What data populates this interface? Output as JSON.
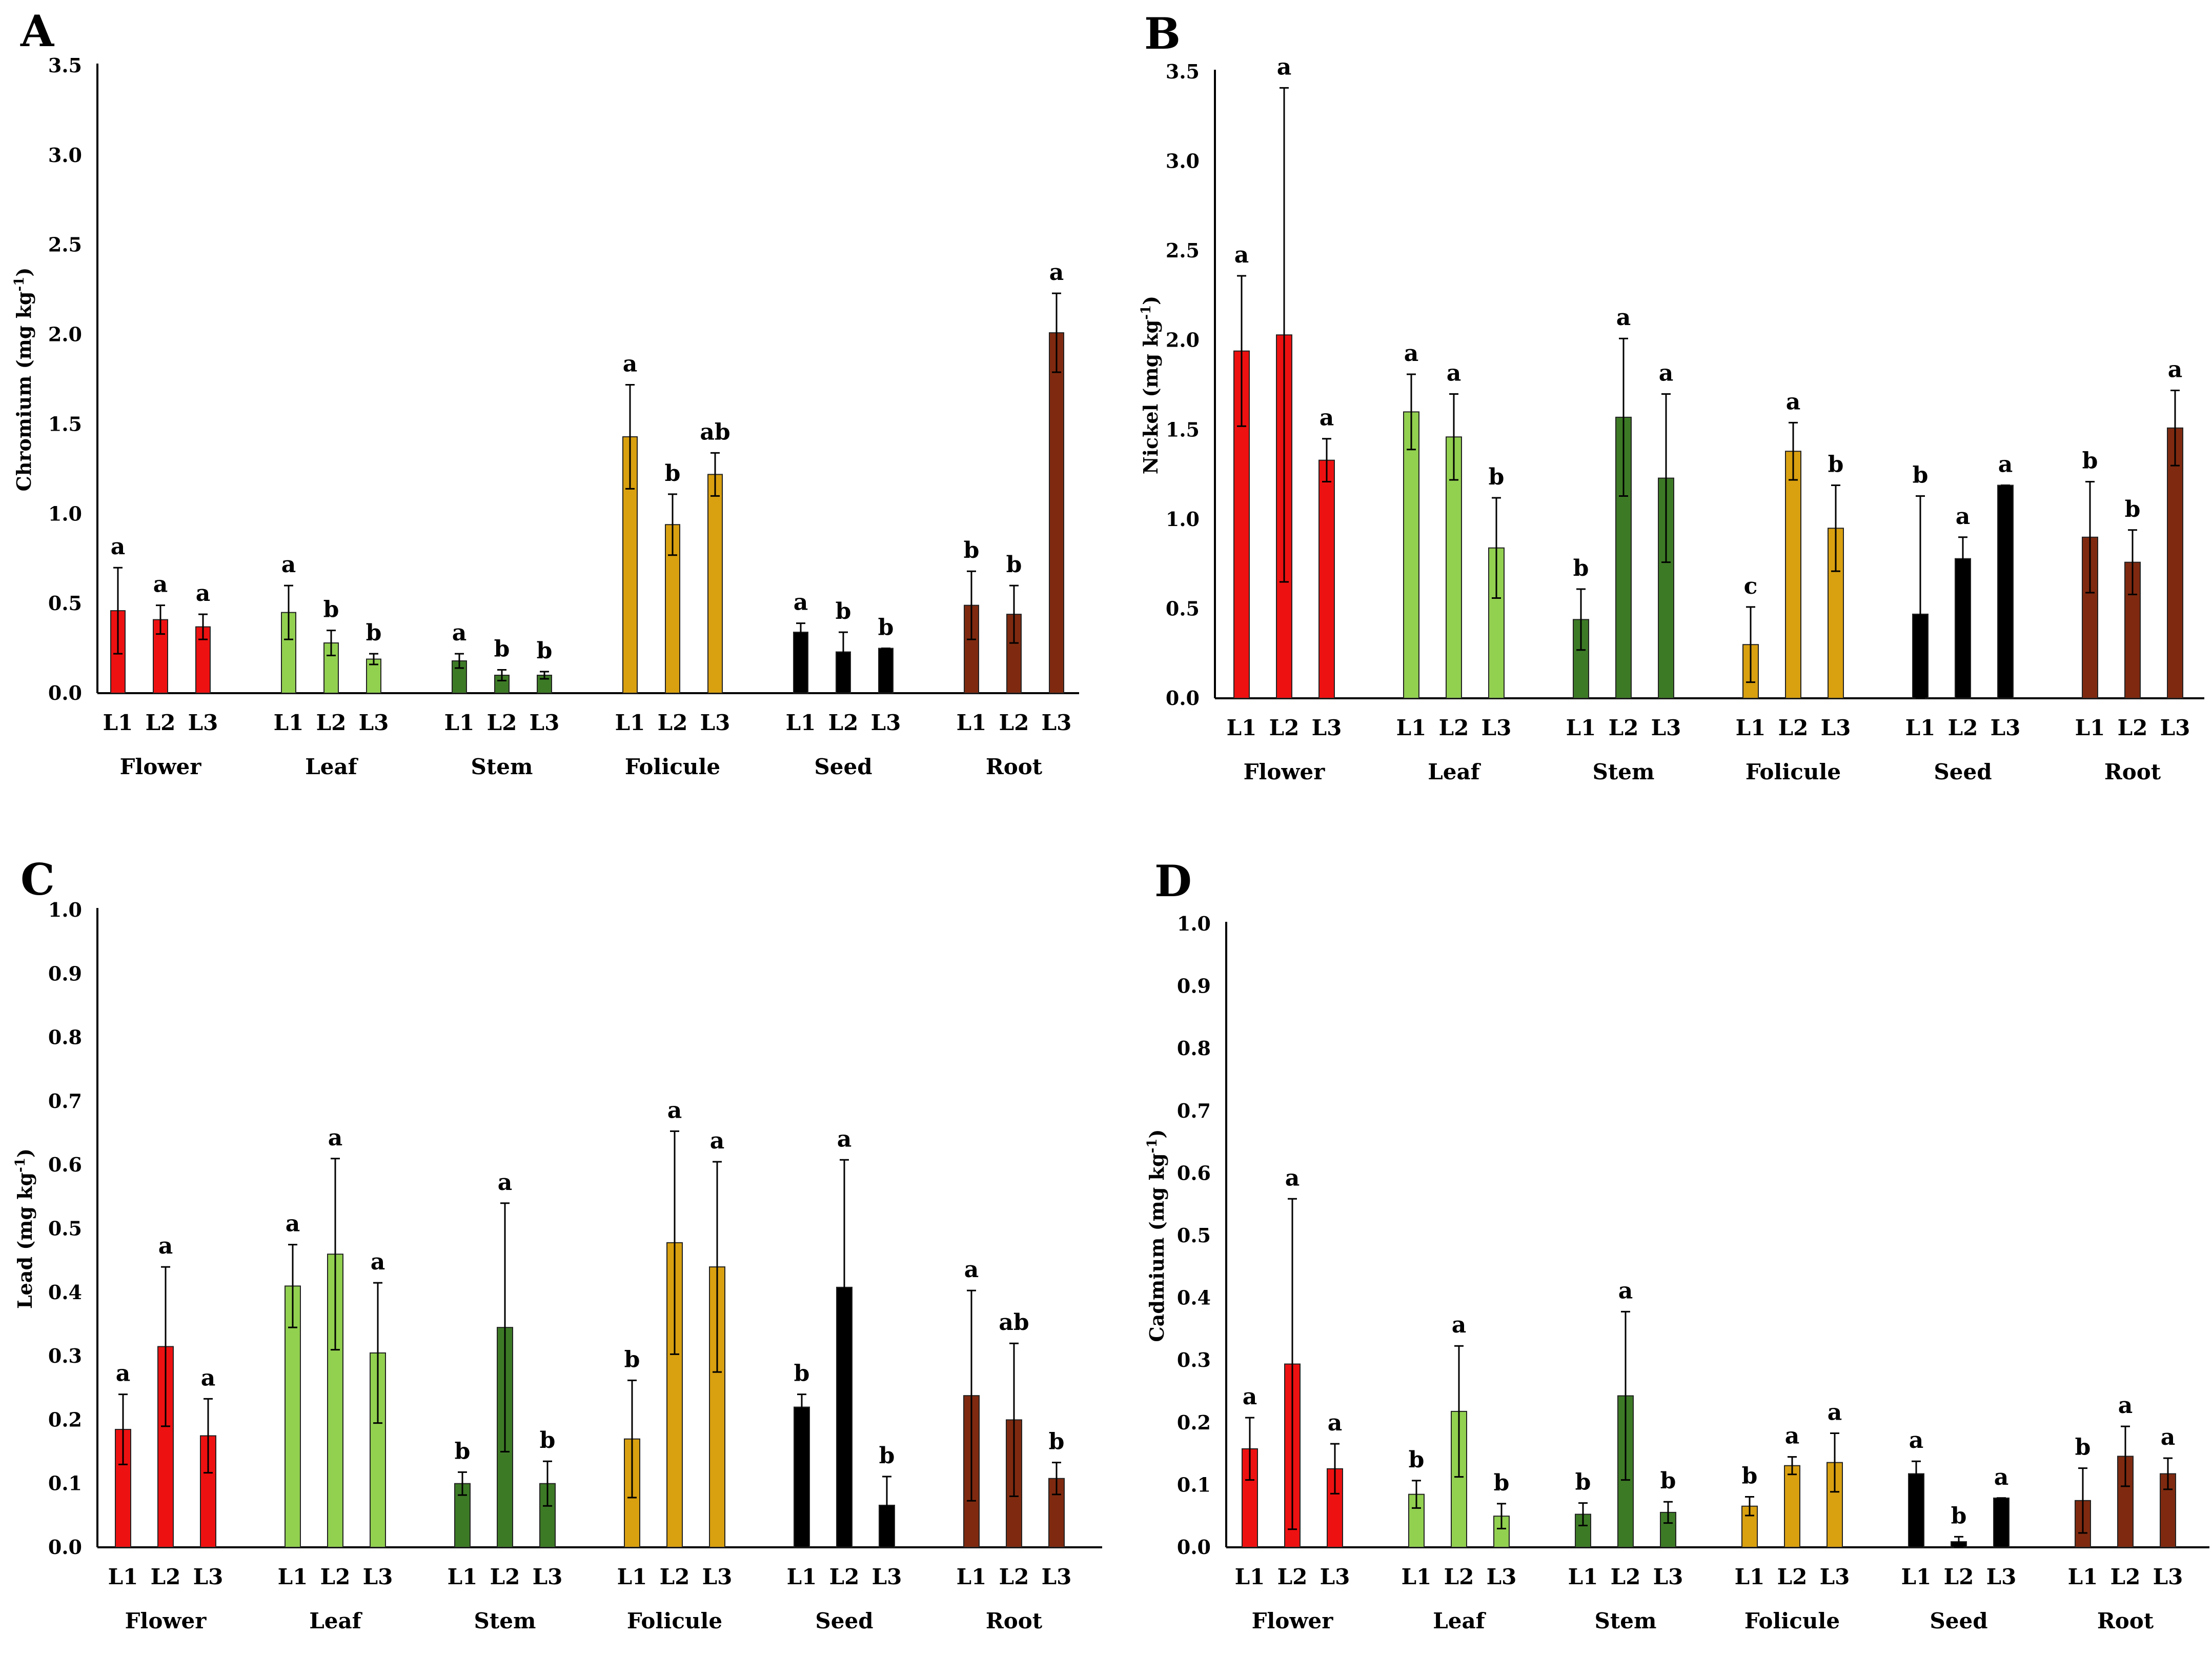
{
  "colors": {
    "Flower": "#ee1111",
    "Leaf": "#92d050",
    "Stem": "#3d7a26",
    "Folicule": "#d9a010",
    "Seed": "#000000",
    "Root": "#7f2a10"
  },
  "chart_data": [
    {
      "type": "bar",
      "panel": "A",
      "ylabel": "Chromium (mg kg",
      "ylabel_sup": "-1",
      "ylabel_close": ")",
      "ylim": [
        0,
        3.5
      ],
      "yticks": [
        "0.0",
        "0.5",
        "1.0",
        "1.5",
        "2.0",
        "2.5",
        "3.0",
        "3.5"
      ],
      "groups": [
        "Flower",
        "Leaf",
        "Stem",
        "Folicule",
        "Seed",
        "Root"
      ],
      "categories": [
        "L1",
        "L2",
        "L3"
      ],
      "series": [
        {
          "name": "Flower",
          "values": [
            0.46,
            0.41,
            0.37
          ],
          "errors": [
            0.24,
            0.08,
            0.07
          ],
          "letters": [
            "a",
            "a",
            "a"
          ]
        },
        {
          "name": "Leaf",
          "values": [
            0.45,
            0.28,
            0.19
          ],
          "errors": [
            0.15,
            0.07,
            0.03
          ],
          "letters": [
            "a",
            "b",
            "b"
          ]
        },
        {
          "name": "Stem",
          "values": [
            0.18,
            0.1,
            0.1
          ],
          "errors": [
            0.04,
            0.03,
            0.02
          ],
          "letters": [
            "a",
            "b",
            "b"
          ]
        },
        {
          "name": "Folicule",
          "values": [
            1.43,
            0.94,
            1.22
          ],
          "errors": [
            0.29,
            0.17,
            0.12
          ],
          "letters": [
            "a",
            "b",
            "ab"
          ]
        },
        {
          "name": "Seed",
          "values": [
            0.34,
            0.23,
            0.25
          ],
          "errors": [
            0.05,
            0.11,
            0.0
          ],
          "letters": [
            "a",
            "b",
            "b"
          ]
        },
        {
          "name": "Root",
          "values": [
            0.49,
            0.44,
            2.01
          ],
          "errors": [
            0.19,
            0.16,
            0.22
          ],
          "letters": [
            "b",
            "b",
            "a"
          ]
        }
      ]
    },
    {
      "type": "bar",
      "panel": "B",
      "ylabel": "Nickel (mg kg",
      "ylabel_sup": "-1",
      "ylabel_close": ")",
      "ylim": [
        0,
        3.5
      ],
      "yticks": [
        "0.0",
        "0.5",
        "1.0",
        "1.5",
        "2.0",
        "2.5",
        "3.0",
        "3.5"
      ],
      "groups": [
        "Flower",
        "Leaf",
        "Stem",
        "Folicule",
        "Seed",
        "Root"
      ],
      "categories": [
        "L1",
        "L2",
        "L3"
      ],
      "series": [
        {
          "name": "Flower",
          "values": [
            1.94,
            2.03,
            1.33
          ],
          "errors": [
            0.42,
            1.38,
            0.12
          ],
          "letters": [
            "a",
            "a",
            "a"
          ]
        },
        {
          "name": "Leaf",
          "values": [
            1.6,
            1.46,
            0.84
          ],
          "errors": [
            0.21,
            0.24,
            0.28
          ],
          "letters": [
            "a",
            "a",
            "b"
          ]
        },
        {
          "name": "Stem",
          "values": [
            0.44,
            1.57,
            1.23
          ],
          "errors": [
            0.17,
            0.44,
            0.47
          ],
          "letters": [
            "b",
            "a",
            "a"
          ]
        },
        {
          "name": "Folicule",
          "values": [
            0.3,
            1.38,
            0.95
          ],
          "errors": [
            0.21,
            0.16,
            0.24
          ],
          "letters": [
            "c",
            "a",
            "b"
          ]
        },
        {
          "name": "Seed",
          "values": [
            0.47,
            0.78,
            1.19
          ],
          "errors": [
            0.66,
            0.12,
            0.0
          ],
          "letters": [
            "b",
            "a",
            "a"
          ]
        },
        {
          "name": "Root",
          "values": [
            0.9,
            0.76,
            1.51
          ],
          "errors": [
            0.31,
            0.18,
            0.21
          ],
          "letters": [
            "b",
            "b",
            "a"
          ]
        }
      ]
    },
    {
      "type": "bar",
      "panel": "C",
      "ylabel": "Lead (mg kg",
      "ylabel_sup": "-1",
      "ylabel_close": ")",
      "ylim": [
        0,
        1.0
      ],
      "yticks": [
        "0.0",
        "0.1",
        "0.2",
        "0.3",
        "0.4",
        "0.5",
        "0.6",
        "0.7",
        "0.8",
        "0.9",
        "1.0"
      ],
      "groups": [
        "Flower",
        "Leaf",
        "Stem",
        "Folicule",
        "Seed",
        "Root"
      ],
      "categories": [
        "L1",
        "L2",
        "L3"
      ],
      "series": [
        {
          "name": "Flower",
          "values": [
            0.185,
            0.315,
            0.175
          ],
          "errors": [
            0.055,
            0.125,
            0.058
          ],
          "letters": [
            "a",
            "a",
            "a"
          ]
        },
        {
          "name": "Leaf",
          "values": [
            0.41,
            0.46,
            0.305
          ],
          "errors": [
            0.065,
            0.15,
            0.11
          ],
          "letters": [
            "a",
            "a",
            "a"
          ]
        },
        {
          "name": "Stem",
          "values": [
            0.1,
            0.345,
            0.1
          ],
          "errors": [
            0.018,
            0.195,
            0.035
          ],
          "letters": [
            "b",
            "a",
            "b"
          ]
        },
        {
          "name": "Folicule",
          "values": [
            0.17,
            0.478,
            0.44
          ],
          "errors": [
            0.092,
            0.175,
            0.165
          ],
          "letters": [
            "b",
            "a",
            "a"
          ]
        },
        {
          "name": "Seed",
          "values": [
            0.22,
            0.408,
            0.066
          ],
          "errors": [
            0.02,
            0.2,
            0.045
          ],
          "letters": [
            "b",
            "a",
            "b"
          ]
        },
        {
          "name": "Root",
          "values": [
            0.238,
            0.2,
            0.108
          ],
          "errors": [
            0.165,
            0.12,
            0.025
          ],
          "letters": [
            "a",
            "ab",
            "b"
          ]
        }
      ]
    },
    {
      "type": "bar",
      "panel": "D",
      "ylabel": "Cadmium (mg kg",
      "ylabel_sup": "-1",
      "ylabel_close": ")",
      "ylim": [
        0,
        1.0
      ],
      "yticks": [
        "0.0",
        "0.1",
        "0.2",
        "0.3",
        "0.4",
        "0.5",
        "0.6",
        "0.7",
        "0.8",
        "0.9",
        "1.0"
      ],
      "groups": [
        "Flower",
        "Leaf",
        "Stem",
        "Folicule",
        "Seed",
        "Root"
      ],
      "categories": [
        "L1",
        "L2",
        "L3"
      ],
      "series": [
        {
          "name": "Flower",
          "values": [
            0.158,
            0.294,
            0.126
          ],
          "errors": [
            0.05,
            0.265,
            0.04
          ],
          "letters": [
            "a",
            "a",
            "a"
          ]
        },
        {
          "name": "Leaf",
          "values": [
            0.085,
            0.218,
            0.05
          ],
          "errors": [
            0.022,
            0.105,
            0.02
          ],
          "letters": [
            "b",
            "a",
            "b"
          ]
        },
        {
          "name": "Stem",
          "values": [
            0.053,
            0.243,
            0.056
          ],
          "errors": [
            0.018,
            0.135,
            0.017
          ],
          "letters": [
            "b",
            "a",
            "b"
          ]
        },
        {
          "name": "Folicule",
          "values": [
            0.066,
            0.131,
            0.136
          ],
          "errors": [
            0.015,
            0.014,
            0.047
          ],
          "letters": [
            "b",
            "a",
            "a"
          ]
        },
        {
          "name": "Seed",
          "values": [
            0.118,
            0.009,
            0.079
          ],
          "errors": [
            0.02,
            0.008,
            0.0
          ],
          "letters": [
            "a",
            "b",
            "a"
          ]
        },
        {
          "name": "Root",
          "values": [
            0.075,
            0.146,
            0.118
          ],
          "errors": [
            0.052,
            0.048,
            0.025
          ],
          "letters": [
            "b",
            "a",
            "a"
          ]
        }
      ]
    }
  ]
}
